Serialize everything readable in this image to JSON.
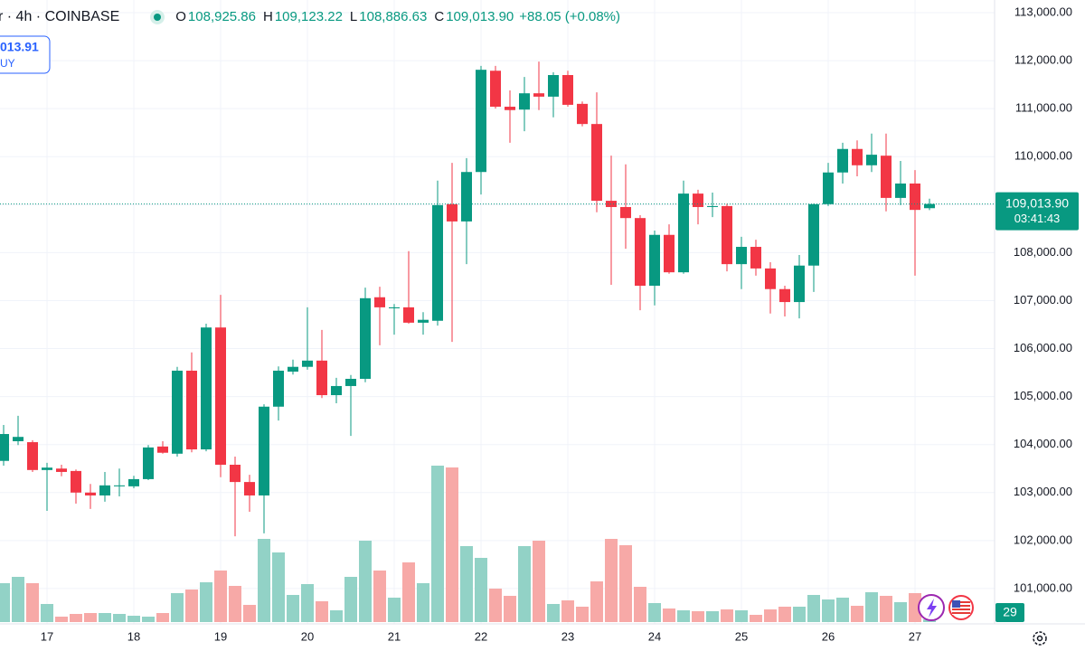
{
  "chart_data": {
    "type": "candlestick",
    "header": {
      "symbol": "r · 4h · COINBASE",
      "fields": [
        {
          "key": "O",
          "value": 108925.86,
          "label": "108,925.86"
        },
        {
          "key": "H",
          "value": 109123.22,
          "label": "109,123.22"
        },
        {
          "key": "L",
          "value": 108886.63,
          "label": "108,886.63"
        },
        {
          "key": "C",
          "value": 109013.9,
          "label": "109,013.90"
        }
      ],
      "change": "+88.05 (+0.08%)"
    },
    "order_box": {
      "price": "013.91",
      "side": "UY"
    },
    "last_price": {
      "value": 109013.9,
      "label": "109,013.90",
      "countdown": "03:41:43"
    },
    "categories": [
      null,
      null,
      null,
      "17",
      null,
      null,
      null,
      null,
      null,
      "18",
      null,
      null,
      null,
      null,
      null,
      "19",
      null,
      null,
      null,
      null,
      null,
      "20",
      null,
      null,
      null,
      null,
      null,
      "21",
      null,
      null,
      null,
      null,
      null,
      "22",
      null,
      null,
      null,
      null,
      null,
      "23",
      null,
      null,
      null,
      null,
      null,
      "24",
      null,
      null,
      null,
      null,
      null,
      "25",
      null,
      null,
      null,
      null,
      null,
      "26",
      null,
      null,
      null,
      null,
      null,
      "27",
      null
    ],
    "open": [
      103660,
      104070,
      104050,
      103470,
      103500,
      103450,
      103000,
      102940,
      103130,
      103130,
      103280,
      103960,
      103810,
      105540,
      103900,
      106440,
      103580,
      103220,
      102940,
      104790,
      105520,
      105620,
      105750,
      105030,
      105220,
      105370,
      107070,
      106840,
      106860,
      106540,
      106580,
      109010,
      108650,
      109680,
      111790,
      111040,
      110980,
      111320,
      111250,
      111700,
      111100,
      110680,
      109080,
      108950,
      108720,
      107310,
      108370,
      107590,
      109230,
      108950,
      108970,
      107760,
      108120,
      107670,
      107240,
      106970,
      107730,
      109010,
      109670,
      110160,
      109820,
      110020,
      109140,
      109440,
      108925.86
    ],
    "high": [
      104410,
      104600,
      104090,
      103620,
      103580,
      103480,
      103180,
      103430,
      103500,
      103350,
      103990,
      104070,
      105620,
      105920,
      106520,
      107120,
      103750,
      103370,
      104840,
      105630,
      105770,
      106860,
      106390,
      105390,
      105450,
      107270,
      107290,
      106930,
      108030,
      106760,
      109500,
      109870,
      109970,
      111890,
      111890,
      111380,
      111660,
      111980,
      111760,
      111790,
      111150,
      111340,
      110020,
      109840,
      108780,
      108460,
      108590,
      109500,
      109310,
      109250,
      109020,
      108330,
      108270,
      107800,
      107310,
      107950,
      109020,
      109870,
      110290,
      110340,
      110480,
      110480,
      109910,
      109720,
      109123.22
    ],
    "low": [
      103560,
      103990,
      103430,
      102620,
      103340,
      102770,
      102660,
      102810,
      102920,
      103090,
      103260,
      103810,
      103750,
      103840,
      103860,
      103320,
      102090,
      102600,
      102150,
      104500,
      105460,
      105560,
      104970,
      104860,
      104180,
      105300,
      106070,
      106290,
      106520,
      106290,
      106480,
      106140,
      107760,
      109210,
      111000,
      110290,
      110530,
      110970,
      110820,
      111040,
      110630,
      108840,
      107330,
      108080,
      106800,
      106900,
      107560,
      107560,
      108590,
      108740,
      107610,
      107240,
      107520,
      106730,
      106670,
      106630,
      107180,
      108970,
      109440,
      109590,
      109680,
      108860,
      108990,
      107520,
      108886.63
    ],
    "close": [
      104220,
      104160,
      103470,
      103520,
      103430,
      103000,
      102940,
      103150,
      103150,
      103280,
      103940,
      103830,
      105540,
      103900,
      106440,
      103580,
      103220,
      102940,
      104790,
      105540,
      105620,
      105750,
      105030,
      105220,
      105370,
      107050,
      106860,
      106860,
      106540,
      106600,
      108990,
      108650,
      109680,
      111810,
      111040,
      110970,
      111320,
      111250,
      111700,
      111080,
      110680,
      109080,
      108950,
      108720,
      107310,
      108370,
      107590,
      109230,
      108950,
      108970,
      107760,
      108120,
      107670,
      107240,
      106970,
      107730,
      109010,
      109670,
      110160,
      109820,
      110040,
      109140,
      109440,
      108890,
      109013.9
    ],
    "volume": [
      430,
      500,
      430,
      200,
      60,
      90,
      100,
      100,
      90,
      70,
      60,
      100,
      320,
      360,
      440,
      570,
      400,
      190,
      920,
      770,
      300,
      420,
      230,
      130,
      500,
      900,
      570,
      270,
      660,
      430,
      1730,
      1710,
      840,
      710,
      370,
      290,
      840,
      900,
      200,
      240,
      170,
      450,
      920,
      850,
      390,
      210,
      150,
      130,
      120,
      120,
      140,
      130,
      80,
      140,
      170,
      170,
      300,
      250,
      270,
      180,
      330,
      290,
      220,
      320,
      29
    ],
    "up_color": "#089981",
    "down_color": "#f23645",
    "up_volume_color": "#92d2c6",
    "down_volume_color": "#f7a9a7",
    "ylim": [
      100264,
      113264
    ],
    "yticks": [
      {
        "value": 101000,
        "label": "101,000.00"
      },
      {
        "value": 102000,
        "label": "102,000.00"
      },
      {
        "value": 103000,
        "label": "103,000.00"
      },
      {
        "value": 104000,
        "label": "104,000.00"
      },
      {
        "value": 105000,
        "label": "105,000.00"
      },
      {
        "value": 106000,
        "label": "106,000.00"
      },
      {
        "value": 107000,
        "label": "107,000.00"
      },
      {
        "value": 108000,
        "label": "108,000.00"
      },
      {
        "value": 109000,
        "label": "109,000.00"
      },
      {
        "value": 110000,
        "label": "110,000.00"
      },
      {
        "value": 111000,
        "label": "111,000.00"
      },
      {
        "value": 112000,
        "label": "112,000.00"
      },
      {
        "value": 113000,
        "label": "113,000.00"
      }
    ],
    "grid": true
  }
}
